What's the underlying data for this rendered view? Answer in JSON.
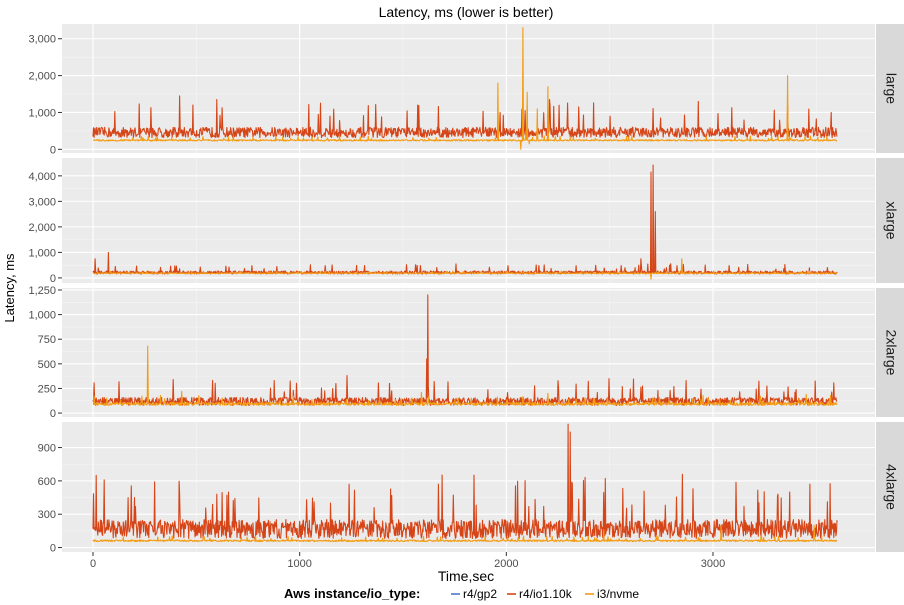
{
  "chart_data": {
    "type": "line",
    "title": "Latency, ms (lower is better)",
    "xlabel": "Time,sec",
    "ylabel": "Latency, ms",
    "x_range": [
      0,
      3600
    ],
    "x_ticks": [
      0,
      1000,
      2000,
      3000
    ],
    "x_tick_labels": [
      "0",
      "1000",
      "2000",
      "3000"
    ],
    "grid": true,
    "legend": {
      "position": "bottom",
      "title": "Aws instance/io_type:",
      "entries": [
        {
          "label": "r4/gp2",
          "color": "#4e79c7"
        },
        {
          "label": "r4/io1.10k",
          "color": "#d64518"
        },
        {
          "label": "i3/nvme",
          "color": "#f39c12"
        }
      ]
    },
    "panels": [
      {
        "strip": "large",
        "ylim": [
          -100,
          3400
        ],
        "y_ticks": [
          0,
          1000,
          2000,
          3000
        ],
        "y_tick_labels": [
          "0",
          "1,000",
          "2,000",
          "3,000"
        ],
        "series": [
          {
            "name": "r4/io1.10k",
            "baseline": 430,
            "noise": 280,
            "spikes": [
              [
                420,
                1450
              ],
              [
                600,
                1350
              ],
              [
                1100,
                1250
              ],
              [
                1570,
                1200
              ],
              [
                2210,
                1350
              ],
              [
                2350,
                1150
              ],
              [
                2930,
                1300
              ],
              [
                3360,
                1200
              ]
            ]
          },
          {
            "name": "i3/nvme",
            "baseline": 240,
            "noise": 40,
            "spikes": [
              [
                1960,
                1800
              ],
              [
                2080,
                3300
              ],
              [
                2100,
                1550
              ],
              [
                2150,
                1100
              ],
              [
                2200,
                1700
              ],
              [
                3360,
                2000
              ]
            ],
            "dips": [
              [
                2070,
                0
              ],
              [
                2110,
                150
              ]
            ]
          }
        ]
      },
      {
        "strip": "xlarge",
        "ylim": [
          -200,
          4700
        ],
        "y_ticks": [
          0,
          1000,
          2000,
          3000,
          4000
        ],
        "y_tick_labels": [
          "0",
          "1,000",
          "2,000",
          "3,000",
          "4,000"
        ],
        "series": [
          {
            "name": "r4/io1.10k",
            "baseline": 200,
            "noise": 120,
            "spikes": [
              [
                75,
                1000
              ],
              [
                10,
                750
              ],
              [
                2700,
                4150
              ],
              [
                2710,
                4420
              ],
              [
                2720,
                2600
              ],
              [
                2650,
                750
              ]
            ]
          },
          {
            "name": "i3/nvme",
            "baseline": 180,
            "noise": 30,
            "spikes": [
              [
                2850,
                750
              ]
            ],
            "dips": [
              [
                2700,
                -50
              ]
            ]
          }
        ]
      },
      {
        "strip": "2xlarge",
        "ylim": [
          -40,
          1270
        ],
        "y_ticks": [
          0,
          250,
          500,
          750,
          1000,
          1250
        ],
        "y_tick_labels": [
          "0",
          "250",
          "500",
          "750",
          "1,000",
          "1,250"
        ],
        "series": [
          {
            "name": "r4/io1.10k",
            "baseline": 110,
            "noise": 80,
            "spikes": [
              [
                1620,
                1200
              ],
              [
                1615,
                550
              ],
              [
                1230,
                380
              ],
              [
                1650,
                320
              ],
              [
                2870,
                330
              ],
              [
                2560,
                270
              ],
              [
                2810,
                270
              ]
            ]
          },
          {
            "name": "i3/nvme",
            "baseline": 90,
            "noise": 30,
            "spikes": [
              [
                265,
                680
              ],
              [
                430,
                220
              ],
              [
                1590,
                210
              ],
              [
                2200,
                200
              ],
              [
                3450,
                190
              ]
            ]
          }
        ]
      },
      {
        "strip": "4xlarge",
        "ylim": [
          -40,
          1130
        ],
        "y_ticks": [
          0,
          300,
          600,
          900
        ],
        "y_tick_labels": [
          "0",
          "300",
          "600",
          "900"
        ],
        "series": [
          {
            "name": "r4/io1.10k",
            "baseline": 150,
            "noise": 170,
            "spikes": [
              [
                2300,
                1110
              ],
              [
                2310,
                1040
              ],
              [
                600,
                480
              ],
              [
                3370,
                500
              ],
              [
                3470,
                570
              ],
              [
                3150,
                370
              ],
              [
                1150,
                400
              ],
              [
                2180,
                370
              ]
            ]
          },
          {
            "name": "i3/nvme",
            "baseline": 60,
            "noise": 15,
            "spikes": [
              [
                3040,
                200
              ],
              [
                2470,
                160
              ],
              [
                3490,
                200
              ]
            ]
          }
        ]
      }
    ]
  }
}
